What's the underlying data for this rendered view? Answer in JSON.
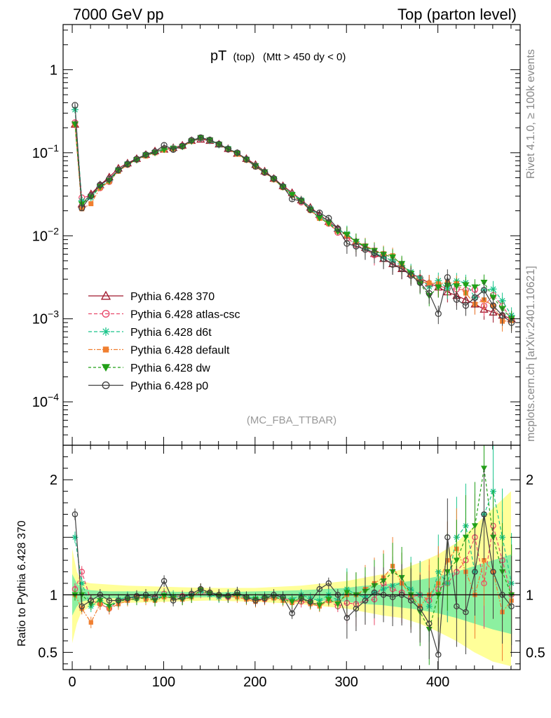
{
  "chart_data": {
    "type": "line",
    "header_left": "7000 GeV pp",
    "header_right": "Top (parton level)",
    "title_main": "pT",
    "title_sub1": "(top)",
    "title_sub2": "(Mtt > 450 dy < 0)",
    "side_label_top": "Rivet 4.1.0, ≥ 100k events",
    "side_label_bottom": "mcplots.cern.ch [arXiv:2401.10621]",
    "analysis_label": "(MC_FBA_TTBAR)",
    "ratio_ylabel": "Ratio to Pythia 6.428 370",
    "xlim": [
      -10,
      490
    ],
    "ylim_main": [
      3e-05,
      3.5
    ],
    "ylim_ratio": [
      0.35,
      2.3
    ],
    "x_ticks": [
      0,
      100,
      200,
      300,
      400
    ],
    "y_ticks_main": [
      {
        "value": 1,
        "label": "1"
      },
      {
        "value": 0.1,
        "label": "10",
        "exp": "−1"
      },
      {
        "value": 0.01,
        "label": "10",
        "exp": "−2"
      },
      {
        "value": 0.001,
        "label": "10",
        "exp": "−3"
      },
      {
        "value": 0.0001,
        "label": "10",
        "exp": "−4"
      }
    ],
    "y_ticks_ratio": [
      {
        "value": 2,
        "label": "2"
      },
      {
        "value": 1,
        "label": "1"
      },
      {
        "value": 0.5,
        "label": "0.5"
      }
    ],
    "reference_ratio": [
      {
        "x": 0,
        "y": 0.22
      },
      {
        "x": 10,
        "y": 0.024
      },
      {
        "x": 20,
        "y": 0.032
      },
      {
        "x": 30,
        "y": 0.041
      },
      {
        "x": 40,
        "y": 0.051
      },
      {
        "x": 50,
        "y": 0.065
      },
      {
        "x": 60,
        "y": 0.075
      },
      {
        "x": 70,
        "y": 0.085
      },
      {
        "x": 80,
        "y": 0.095
      },
      {
        "x": 90,
        "y": 0.105
      },
      {
        "x": 100,
        "y": 0.11
      },
      {
        "x": 110,
        "y": 0.115
      },
      {
        "x": 120,
        "y": 0.123
      },
      {
        "x": 130,
        "y": 0.14
      },
      {
        "x": 140,
        "y": 0.145
      },
      {
        "x": 150,
        "y": 0.14
      },
      {
        "x": 160,
        "y": 0.127
      },
      {
        "x": 170,
        "y": 0.112
      },
      {
        "x": 180,
        "y": 0.098
      },
      {
        "x": 190,
        "y": 0.085
      },
      {
        "x": 200,
        "y": 0.072
      },
      {
        "x": 210,
        "y": 0.06
      },
      {
        "x": 220,
        "y": 0.049
      },
      {
        "x": 230,
        "y": 0.04
      },
      {
        "x": 240,
        "y": 0.033
      },
      {
        "x": 250,
        "y": 0.027
      },
      {
        "x": 260,
        "y": 0.022
      },
      {
        "x": 270,
        "y": 0.018
      },
      {
        "x": 280,
        "y": 0.0148
      },
      {
        "x": 290,
        "y": 0.0122
      },
      {
        "x": 300,
        "y": 0.0101
      },
      {
        "x": 310,
        "y": 0.0085
      },
      {
        "x": 320,
        "y": 0.0072
      },
      {
        "x": 330,
        "y": 0.0061
      },
      {
        "x": 340,
        "y": 0.0053
      },
      {
        "x": 350,
        "y": 0.0046
      },
      {
        "x": 360,
        "y": 0.004
      },
      {
        "x": 370,
        "y": 0.0035
      },
      {
        "x": 380,
        "y": 0.0031
      },
      {
        "x": 390,
        "y": 0.0027
      },
      {
        "x": 400,
        "y": 0.0024
      },
      {
        "x": 410,
        "y": 0.0021
      },
      {
        "x": 420,
        "y": 0.0019
      },
      {
        "x": 430,
        "y": 0.0017
      },
      {
        "x": 440,
        "y": 0.0015
      },
      {
        "x": 450,
        "y": 0.0013
      },
      {
        "x": 460,
        "y": 0.0012
      },
      {
        "x": 470,
        "y": 0.0011
      },
      {
        "x": 480,
        "y": 0.001
      }
    ],
    "yellow_band": {
      "x": [
        0,
        5,
        10,
        20,
        40,
        60,
        100,
        150,
        200,
        250,
        300,
        320,
        340,
        360,
        380,
        400,
        420,
        440,
        460,
        480
      ],
      "lo": [
        0.58,
        0.75,
        0.85,
        0.9,
        0.92,
        0.93,
        0.94,
        0.95,
        0.94,
        0.92,
        0.88,
        0.85,
        0.82,
        0.8,
        0.75,
        0.68,
        0.6,
        0.5,
        0.42,
        0.38
      ],
      "hi": [
        1.4,
        1.2,
        1.12,
        1.1,
        1.09,
        1.08,
        1.07,
        1.06,
        1.06,
        1.08,
        1.12,
        1.15,
        1.18,
        1.22,
        1.28,
        1.35,
        1.45,
        1.6,
        1.75,
        1.9
      ]
    },
    "green_band": {
      "x": [
        0,
        5,
        10,
        20,
        40,
        60,
        100,
        150,
        200,
        250,
        300,
        320,
        340,
        360,
        380,
        400,
        420,
        440,
        460,
        480
      ],
      "lo": [
        0.82,
        0.9,
        0.94,
        0.96,
        0.97,
        0.97,
        0.97,
        0.98,
        0.97,
        0.96,
        0.94,
        0.92,
        0.91,
        0.89,
        0.87,
        0.84,
        0.8,
        0.75,
        0.7,
        0.66
      ],
      "hi": [
        1.18,
        1.1,
        1.06,
        1.04,
        1.03,
        1.03,
        1.03,
        1.02,
        1.03,
        1.04,
        1.06,
        1.08,
        1.09,
        1.11,
        1.13,
        1.16,
        1.2,
        1.25,
        1.3,
        1.35
      ]
    },
    "series": [
      {
        "name": "Pythia 6.428 370",
        "color": "#a0182c",
        "marker": "triangle-open",
        "dash": "",
        "ratio": [
          1.0,
          1.0,
          1.0,
          1.0,
          1.0,
          1.0,
          1.0,
          1.0,
          1.0,
          1.0,
          1.0,
          1.0,
          1.0,
          1.0,
          1.0,
          1.0,
          1.0,
          1.0,
          1.0,
          1.0,
          1.0,
          1.0,
          1.0,
          1.0,
          1.0,
          1.0,
          1.0,
          1.0,
          1.0,
          1.0,
          1.0,
          1.0,
          1.0,
          1.0,
          1.0,
          1.0,
          1.0,
          1.0,
          1.0,
          1.0,
          1.0,
          1.0,
          1.0,
          1.0,
          1.0,
          1.0,
          1.0,
          1.0,
          1.0
        ]
      },
      {
        "name": "Pythia 6.428 atlas-csc",
        "color": "#e8486a",
        "marker": "circle-open",
        "dash": "5,3",
        "ratio": [
          1.05,
          1.2,
          0.95,
          0.92,
          0.88,
          0.95,
          0.96,
          0.97,
          0.98,
          0.97,
          1.01,
          0.98,
          0.99,
          1.0,
          1.02,
          1.01,
          0.99,
          0.98,
          1.0,
          0.97,
          0.95,
          0.96,
          0.98,
          0.97,
          0.95,
          0.94,
          0.93,
          0.92,
          0.95,
          0.9,
          0.93,
          0.92,
          0.95,
          0.96,
          1.1,
          1.05,
          1.02,
          0.98,
          1.0,
          0.95,
          1.05,
          1.1,
          1.2,
          1.3,
          1.5,
          1.1,
          1.6,
          1.3,
          1.0
        ]
      },
      {
        "name": "Pythia 6.428 d6t",
        "color": "#19c48a",
        "marker": "star",
        "dash": "5,3",
        "ratio": [
          1.5,
          1.1,
          0.9,
          0.95,
          0.9,
          0.96,
          0.98,
          0.97,
          0.99,
          0.96,
          1.0,
          0.99,
          0.97,
          1.0,
          1.03,
          1.0,
          0.98,
          1.0,
          1.01,
          0.98,
          0.97,
          0.98,
          0.99,
          0.98,
          0.96,
          1.0,
          0.97,
          0.95,
          1.0,
          0.95,
          1.05,
          1.0,
          0.98,
          1.02,
          1.05,
          1.08,
          1.1,
          1.05,
          1.0,
          0.9,
          1.2,
          1.1,
          1.5,
          1.6,
          1.2,
          1.7,
          1.9,
          1.5,
          1.1
        ]
      },
      {
        "name": "Pythia 6.428 default",
        "color": "#f07f30",
        "marker": "square",
        "dash": "6,2,2,2",
        "ratio": [
          1.0,
          0.88,
          0.76,
          0.92,
          0.88,
          0.92,
          0.95,
          0.98,
          0.96,
          0.95,
          0.98,
          0.97,
          0.96,
          0.98,
          1.05,
          1.02,
          1.0,
          0.99,
          0.98,
          0.96,
          0.94,
          0.96,
          0.97,
          0.95,
          0.93,
          0.96,
          0.92,
          0.9,
          0.95,
          0.93,
          1.0,
          1.0,
          1.05,
          1.1,
          1.15,
          1.25,
          1.1,
          1.0,
          0.9,
          1.0,
          1.1,
          1.3,
          1.4,
          1.2,
          1.0,
          1.3,
          1.2,
          0.85,
          0.95
        ]
      },
      {
        "name": "Pythia 6.428 dw",
        "color": "#22a018",
        "marker": "triangle-down",
        "dash": "4,3",
        "ratio": [
          1.0,
          1.0,
          0.92,
          0.95,
          0.9,
          0.94,
          0.96,
          0.96,
          0.98,
          0.95,
          0.99,
          0.97,
          0.96,
          0.98,
          1.04,
          1.01,
          0.99,
          0.98,
          1.0,
          0.97,
          0.96,
          0.97,
          0.98,
          0.96,
          0.94,
          0.97,
          0.93,
          0.91,
          0.96,
          0.92,
          1.02,
          1.0,
          1.03,
          1.08,
          1.12,
          1.2,
          1.15,
          1.0,
          0.85,
          0.7,
          1.0,
          1.2,
          1.3,
          1.5,
          1.6,
          2.1,
          1.5,
          1.2,
          1.0
        ]
      },
      {
        "name": "Pythia 6.428 p0",
        "color": "#404040",
        "marker": "circle-open",
        "dash": "",
        "ratio": [
          1.7,
          0.9,
          0.95,
          1.0,
          0.95,
          0.95,
          0.97,
          0.99,
          1.0,
          0.98,
          1.12,
          0.95,
          0.98,
          1.01,
          1.05,
          1.02,
          1.0,
          0.99,
          1.02,
          0.98,
          0.95,
          0.97,
          1.0,
          0.98,
          0.84,
          0.97,
          0.94,
          1.05,
          1.1,
          1.0,
          0.8,
          0.88,
          0.95,
          1.02,
          1.0,
          0.98,
          1.0,
          0.95,
          0.88,
          0.75,
          0.48,
          1.5,
          0.9,
          0.85,
          1.2,
          1.7,
          1.2,
          1.0,
          0.9
        ]
      }
    ]
  }
}
